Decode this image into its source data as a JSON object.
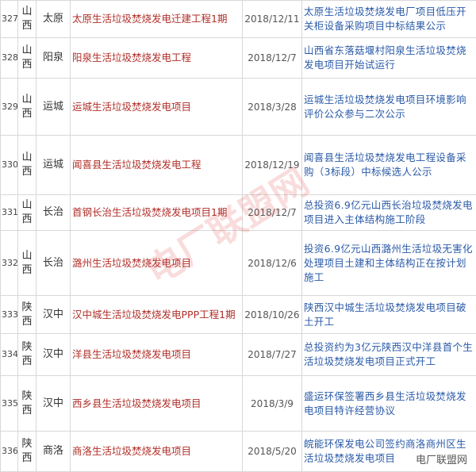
{
  "table": {
    "rows": [
      [
        "327",
        "山西",
        "太原",
        "太原生活垃圾焚烧发电迁建工程1期",
        "2018/12/11",
        "太原生活垃圾焚烧发电厂项目低压开关柜设备采购项目中标结果公示"
      ],
      [
        "328",
        "山西",
        "阳泉",
        "阳泉生活垃圾焚烧发电工程",
        "2018/12/7",
        "山西省东落菇堰村阳泉生活垃圾焚烧发电项目开始试运行"
      ],
      [
        "329",
        "山西",
        "运城",
        "运城生活垃圾焚烧发电项目",
        "2018/3/28",
        "运城生活垃圾焚烧发电项目环境影响评价公众参与二次公示"
      ],
      [
        "330",
        "山西",
        "运城",
        "闻喜县生活垃圾焚烧发电工程",
        "2018/12/19",
        "闻喜县生活垃圾焚烧发电工程设备采购（3标段）中标候选人公示"
      ],
      [
        "331",
        "山西",
        "长治",
        "首钢长治生活垃圾焚烧发电项目1期",
        "2018/12/7",
        "总投资6.9亿元山西长治垃圾焚烧发电项目进入主体结构施工阶段"
      ],
      [
        "332",
        "山西",
        "长治",
        "潞州生活垃圾焚烧发电项目",
        "2018/12/6",
        "投资6.9亿元山西潞州生活垃圾无害化处理项目土建和主体结构正在按计划施工"
      ],
      [
        "333",
        "陕西",
        "汉中",
        "汉中城生活垃圾焚烧发电PPP工程1期",
        "2018/10/26",
        "陕西汉中城生活垃圾焚烧发电项目破土开工"
      ],
      [
        "334",
        "陕西",
        "汉中",
        "洋县生活垃圾焚烧发电项目",
        "2018/7/27",
        "总投资约为3亿元陕西汉中洋县首个生活垃圾焚烧发电项目正式开工"
      ],
      [
        "335",
        "陕西",
        "汉中",
        "西乡县生活垃圾焚烧发电项目",
        "2018/3/9",
        "盛运环保签署西乡县生活垃圾焚烧发电项目特许经营协议"
      ],
      [
        "336",
        "陕西",
        "商洛",
        "商洛生活垃圾焚烧发电项目",
        "2018/5/20",
        "皖能环保发电公司签约商洛商州区生活垃圾焚烧发电项目"
      ]
    ]
  },
  "watermark": "电厂联盟网",
  "logo": "电厂联盟网"
}
